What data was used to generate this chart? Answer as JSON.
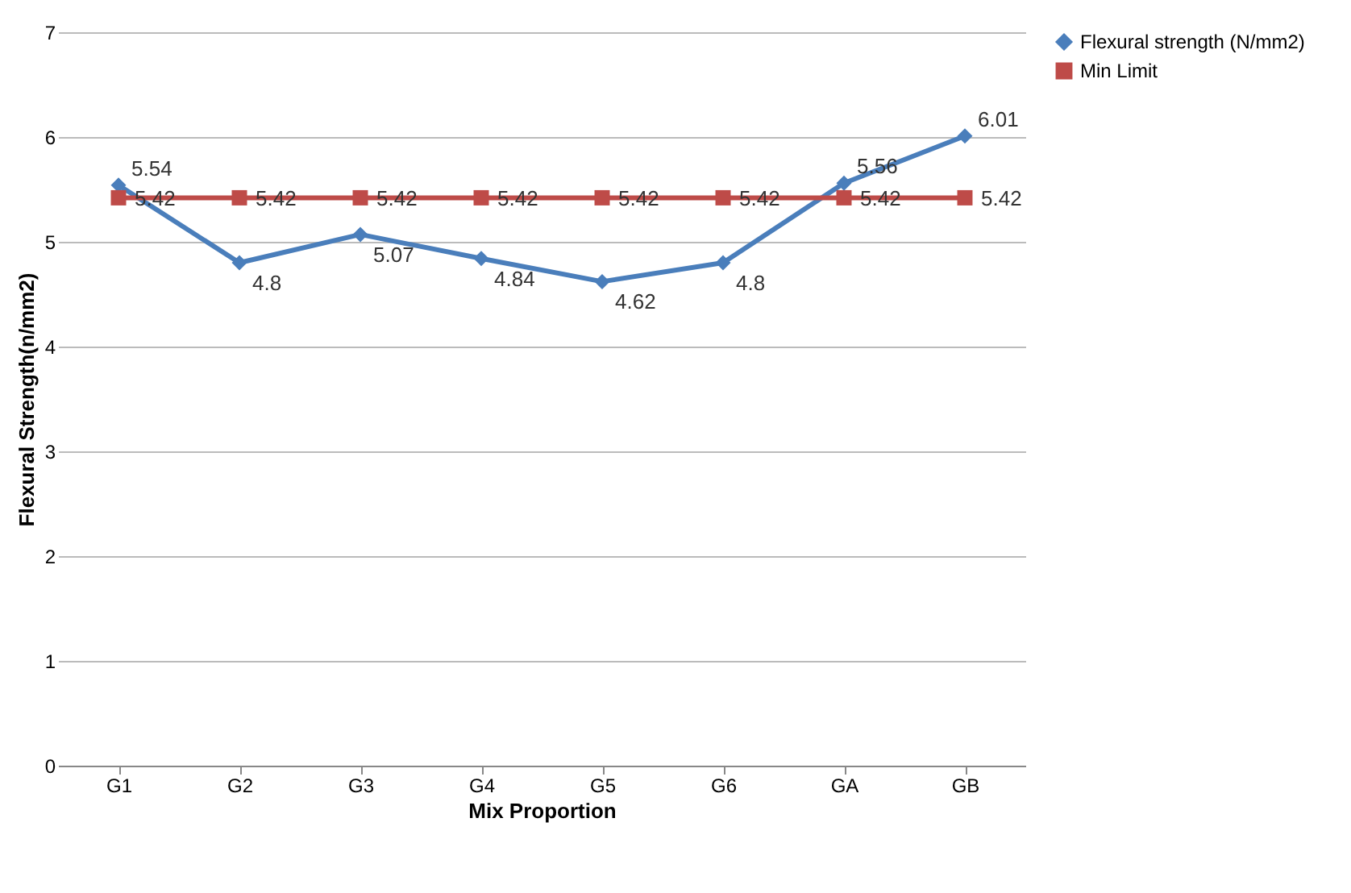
{
  "chart_data": {
    "type": "line",
    "xlabel": "Mix Proportion",
    "ylabel": "Flexural Strength(n/mm2)",
    "categories": [
      "G1",
      "G2",
      "G3",
      "G4",
      "G5",
      "G6",
      "GA",
      "GB"
    ],
    "series": [
      {
        "name": "Flexural strength (N/mm2)",
        "color": "#4a7ebb",
        "marker": "diamond",
        "values": [
          5.54,
          4.8,
          5.07,
          4.84,
          4.62,
          4.8,
          5.56,
          6.01
        ]
      },
      {
        "name": "Min Limit",
        "color": "#be4b48",
        "marker": "square",
        "values": [
          5.42,
          5.42,
          5.42,
          5.42,
          5.42,
          5.42,
          5.42,
          5.42
        ]
      }
    ],
    "ylim": [
      0,
      7
    ],
    "yticks": [
      0,
      1,
      2,
      3,
      4,
      5,
      6,
      7
    ],
    "grid": "y",
    "legend": "right",
    "data_labels": true,
    "line_style": "solid"
  }
}
